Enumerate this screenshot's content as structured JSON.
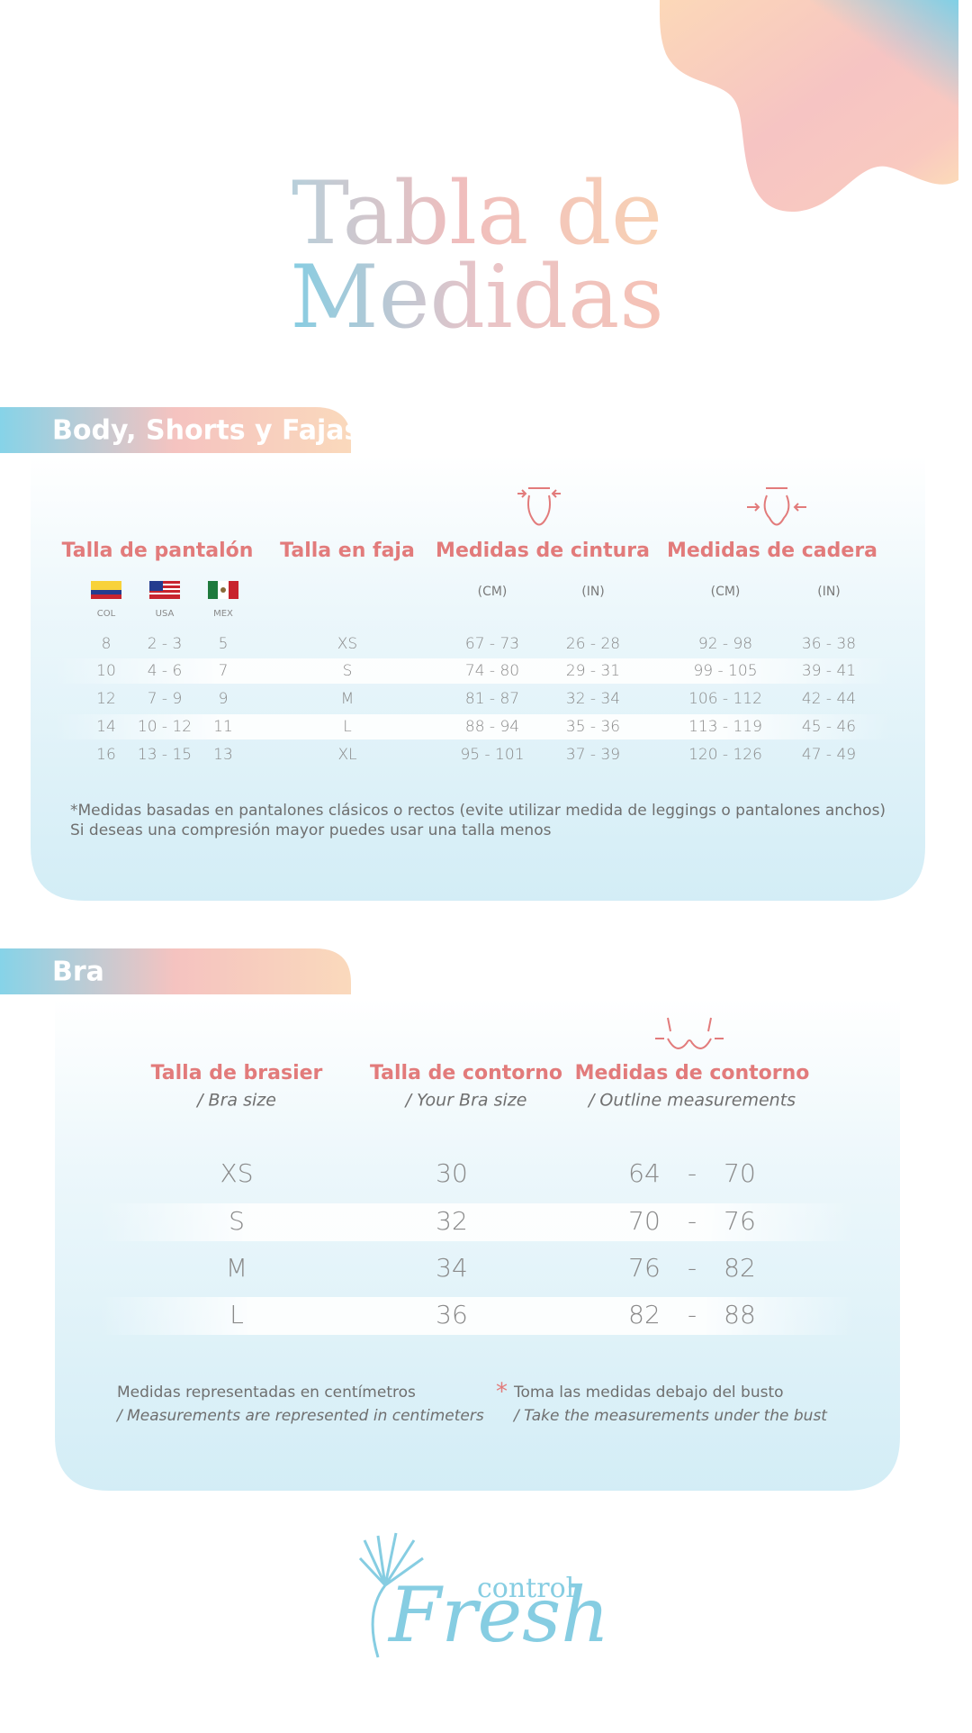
{
  "title": [
    "Tabla de",
    "Medidas"
  ],
  "body_section": {
    "title": "Body, Shorts y Fajas",
    "headers": [
      "Talla de pantalón",
      "Talla en faja",
      "Medidas de cintura",
      "Medidas de cadera"
    ],
    "countries": [
      "COL",
      "USA",
      "MEX"
    ],
    "units": [
      "(CM)",
      "(IN)",
      "(CM)",
      "(IN)"
    ],
    "rows": [
      [
        "8",
        "2 - 3",
        "5",
        "XS",
        "67 - 73",
        "26 - 28",
        "92 - 98",
        "36 - 38"
      ],
      [
        "10",
        "4 - 6",
        "7",
        "S",
        "74 - 80",
        "29 - 31",
        "99 - 105",
        "39 - 41"
      ],
      [
        "12",
        "7 - 9",
        "9",
        "M",
        "81 - 87",
        "32 - 34",
        "106 - 112",
        "42 - 44"
      ],
      [
        "14",
        "10 - 12",
        "11",
        "L",
        "88 - 94",
        "35 - 36",
        "113 - 119",
        "45 - 46"
      ],
      [
        "16",
        "13 - 15",
        "13",
        "XL",
        "95 - 101",
        "37 - 39",
        "120 - 126",
        "47 - 49"
      ]
    ],
    "notes": [
      "*Medidas basadas en pantalones clásicos o rectos (evite utilizar medida de leggings o pantalones anchos)",
      "Si deseas una compresión mayor puedes usar una talla menos"
    ]
  },
  "bra_section": {
    "title": "Bra",
    "headers": [
      {
        "title": "Talla de brasier",
        "subtitle": "/ Bra size"
      },
      {
        "title": "Talla de contorno",
        "subtitle": "/ Your Bra size"
      },
      {
        "title": "Medidas de contorno",
        "subtitle": "/ Outline measurements"
      }
    ],
    "rows": [
      [
        "XS",
        "30",
        "64",
        "-",
        "70"
      ],
      [
        "S",
        "32",
        "70",
        "-",
        "76"
      ],
      [
        "M",
        "34",
        "76",
        "-",
        "82"
      ],
      [
        "L",
        "36",
        "82",
        "-",
        "88"
      ]
    ],
    "notes": [
      {
        "text": "Medidas representadas en centímetros",
        "subtitle": "/ Measurements are represented in centimeters"
      },
      {
        "marker": "*",
        "text": "Toma las medidas debajo del busto",
        "subtitle": "/ Take the measurements under the bust"
      }
    ]
  },
  "logo": {
    "small": "control",
    "large": "Fresh"
  }
}
